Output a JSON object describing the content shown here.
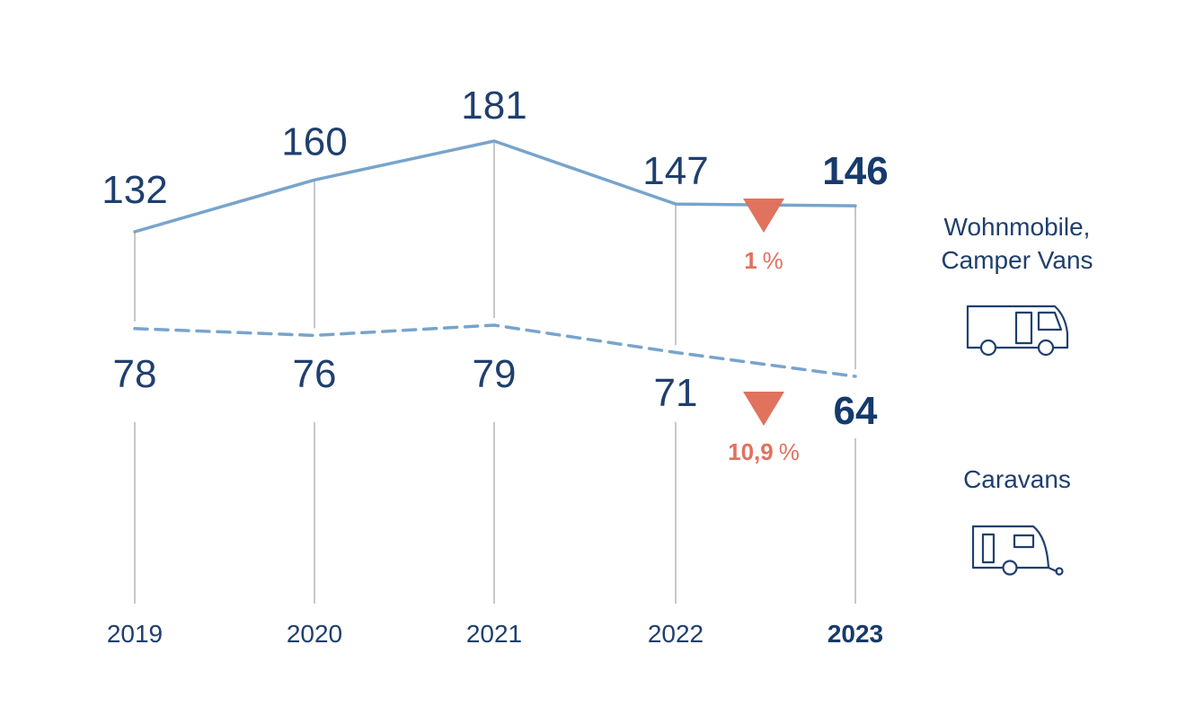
{
  "chart_data": {
    "type": "line",
    "categories": [
      "2019",
      "2020",
      "2021",
      "2022",
      "2023"
    ],
    "highlight_category": "2023",
    "series": [
      {
        "name": "Wohnmobile, Camper Vans",
        "style": "solid",
        "values": [
          132,
          160,
          181,
          147,
          146
        ],
        "value_labels": [
          "132",
          "160",
          "181",
          "147",
          "146"
        ],
        "change": {
          "direction": "down",
          "value": "1",
          "unit": "%"
        },
        "icon": "motorhome-icon"
      },
      {
        "name": "Caravans",
        "style": "dashed",
        "values": [
          78,
          76,
          79,
          71,
          64
        ],
        "value_labels": [
          "78",
          "76",
          "79",
          "71",
          "64"
        ],
        "change": {
          "direction": "down",
          "value": "10,9",
          "unit": "%"
        },
        "icon": "caravan-icon"
      }
    ],
    "grid": false,
    "legend_placement": "right"
  },
  "legend": {
    "motorhome_line1": "Wohnmobile,",
    "motorhome_line2": "Camper Vans",
    "caravan": "Caravans"
  },
  "colors": {
    "line": "#78a4cc",
    "text": "#1f3f6e",
    "text_bold": "#163a6b",
    "decrease": "#e0725e",
    "gridline": "#c8c8c8",
    "icon": "#1f3f6e"
  }
}
